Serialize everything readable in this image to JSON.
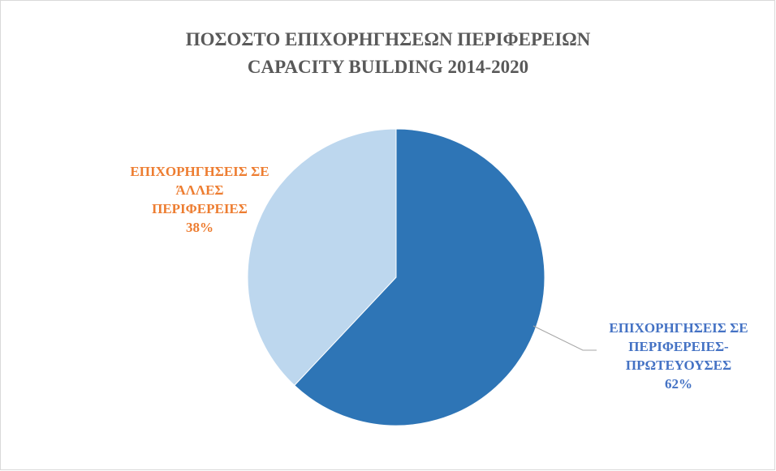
{
  "chart_data": {
    "type": "pie",
    "title": [
      "ΠΟΣΟΣΤΟ ΕΠΙΧΟΡΗΓΗΣΕΩΝ ΠΕΡΙΦΕΡΕΙΩΝ",
      "CAPACITY BUILDING 2014-2020"
    ],
    "categories": [
      "ΕΠΙΧΟΡΗΓΗΣΕΙΣ ΣΕ ΠΕΡΙΦΕΡΕΙΕΣ-ΠΡΩΤΕΥΟΥΣΕΣ",
      "ΕΠΙΧΟΡΗΓΗΣΕΙΣ ΣΕ ΆΛΛΕΣ ΠΕΡΙΦΕΡΕΙΕΣ"
    ],
    "values": [
      62,
      38
    ],
    "value_labels": [
      "62%",
      "38%"
    ],
    "colors": [
      "#2e75b6",
      "#bdd7ee"
    ],
    "label_colors": [
      "#4472c4",
      "#ed7d31"
    ]
  }
}
